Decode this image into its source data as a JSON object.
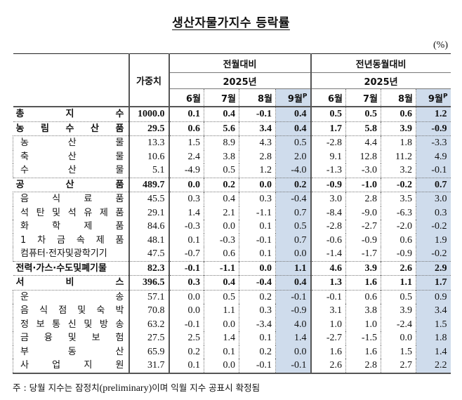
{
  "title": "생산자물가지수 등락률",
  "unit": "(%)",
  "header": {
    "weight": "가중치",
    "group_mom": "전월대비",
    "group_yoy": "전년동월대비",
    "year": "2025년",
    "months": [
      "6월",
      "7월",
      "8월",
      "9월"
    ],
    "preliminary_mark": "P"
  },
  "colors": {
    "highlight": "#cfdcec",
    "border": "#555555"
  },
  "rows": [
    {
      "label": "총 지 수",
      "bold": true,
      "weight": "1000.0",
      "mom": [
        "0.1",
        "0.4",
        "-0.1",
        "0.4"
      ],
      "yoy": [
        "0.5",
        "0.5",
        "0.6",
        "1.2"
      ]
    },
    {
      "label": "농 림 수 산 품",
      "bold": true,
      "weight": "29.5",
      "mom": [
        "0.6",
        "5.6",
        "3.4",
        "0.4"
      ],
      "yoy": [
        "1.7",
        "5.8",
        "3.9",
        "-0.9"
      ]
    },
    {
      "label": "농 산 물",
      "bold": false,
      "weight": "13.3",
      "mom": [
        "1.5",
        "8.9",
        "4.3",
        "0.5"
      ],
      "yoy": [
        "-2.8",
        "4.4",
        "1.8",
        "-3.3"
      ]
    },
    {
      "label": "축 산 물",
      "bold": false,
      "weight": "10.6",
      "mom": [
        "2.4",
        "3.8",
        "2.8",
        "2.0"
      ],
      "yoy": [
        "9.1",
        "12.8",
        "11.2",
        "4.9"
      ]
    },
    {
      "label": "수 산 물",
      "bold": false,
      "weight": "5.1",
      "mom": [
        "-4.9",
        "0.5",
        "1.2",
        "-4.0"
      ],
      "yoy": [
        "-1.3",
        "-3.0",
        "3.2",
        "-0.1"
      ]
    },
    {
      "label": "공 산 품",
      "bold": true,
      "weight": "489.7",
      "mom": [
        "0.0",
        "0.2",
        "0.0",
        "0.2"
      ],
      "yoy": [
        "-0.9",
        "-1.0",
        "-0.2",
        "0.7"
      ]
    },
    {
      "label": "음 식 료 품",
      "bold": false,
      "weight": "45.5",
      "mom": [
        "0.3",
        "0.4",
        "0.3",
        "-0.4"
      ],
      "yoy": [
        "3.0",
        "2.8",
        "3.5",
        "3.0"
      ]
    },
    {
      "label": "석 탄 및 석 유 제 품",
      "bold": false,
      "weight": "29.1",
      "mom": [
        "1.4",
        "2.1",
        "-1.1",
        "0.7"
      ],
      "yoy": [
        "-8.4",
        "-9.0",
        "-6.3",
        "0.3"
      ]
    },
    {
      "label": "화 학 제 품",
      "bold": false,
      "weight": "84.6",
      "mom": [
        "-0.3",
        "0.0",
        "0.1",
        "0.5"
      ],
      "yoy": [
        "-2.8",
        "-2.7",
        "-2.0",
        "-0.2"
      ]
    },
    {
      "label": "1 차 금 속 제 품",
      "bold": false,
      "weight": "48.1",
      "mom": [
        "0.1",
        "-0.3",
        "-0.1",
        "0.7"
      ],
      "yoy": [
        "-0.6",
        "-0.9",
        "0.6",
        "1.9"
      ]
    },
    {
      "label": "컴퓨터·전자및광학기기",
      "bold": false,
      "weight": "47.5",
      "mom": [
        "-0.7",
        "0.6",
        "0.1",
        "0.0"
      ],
      "yoy": [
        "-1.4",
        "-1.7",
        "-0.9",
        "-0.2"
      ]
    },
    {
      "label": "전력·가스·수도및폐기물",
      "bold": true,
      "weight": "82.3",
      "mom": [
        "-0.1",
        "-1.1",
        "0.0",
        "1.1"
      ],
      "yoy": [
        "4.6",
        "3.9",
        "2.6",
        "2.9"
      ]
    },
    {
      "label": "서 비 스",
      "bold": true,
      "weight": "396.5",
      "mom": [
        "0.3",
        "0.4",
        "-0.4",
        "0.4"
      ],
      "yoy": [
        "1.3",
        "1.6",
        "1.1",
        "1.7"
      ]
    },
    {
      "label": "운 송",
      "bold": false,
      "weight": "57.1",
      "mom": [
        "0.0",
        "0.5",
        "0.2",
        "-0.1"
      ],
      "yoy": [
        "-0.1",
        "0.6",
        "0.5",
        "0.9"
      ]
    },
    {
      "label": "음 식 점 및 숙 박",
      "bold": false,
      "weight": "70.8",
      "mom": [
        "0.0",
        "1.1",
        "0.3",
        "-0.9"
      ],
      "yoy": [
        "3.1",
        "3.8",
        "3.9",
        "3.4"
      ]
    },
    {
      "label": "정 보 통 신 및 방 송",
      "bold": false,
      "weight": "63.2",
      "mom": [
        "-0.1",
        "0.0",
        "-3.4",
        "4.0"
      ],
      "yoy": [
        "1.0",
        "1.0",
        "-2.4",
        "1.5"
      ]
    },
    {
      "label": "금 융 및 보 험",
      "bold": false,
      "weight": "27.5",
      "mom": [
        "2.5",
        "1.4",
        "0.1",
        "1.4"
      ],
      "yoy": [
        "-2.7",
        "-1.5",
        "0.0",
        "1.8"
      ]
    },
    {
      "label": "부 동 산",
      "bold": false,
      "weight": "65.9",
      "mom": [
        "0.2",
        "0.1",
        "0.2",
        "0.0"
      ],
      "yoy": [
        "1.6",
        "1.6",
        "1.5",
        "1.4"
      ]
    },
    {
      "label": "사 업 지 원",
      "bold": false,
      "weight": "31.7",
      "mom": [
        "0.1",
        "0.0",
        "-0.1",
        "-0.1"
      ],
      "yoy": [
        "2.6",
        "2.8",
        "2.7",
        "2.2"
      ]
    }
  ],
  "note": {
    "prefix": "주 : 당월 지수는 잠정치",
    "english": "(preliminary)",
    "suffix": "이며 익월 지수 공표시 확정됨"
  }
}
